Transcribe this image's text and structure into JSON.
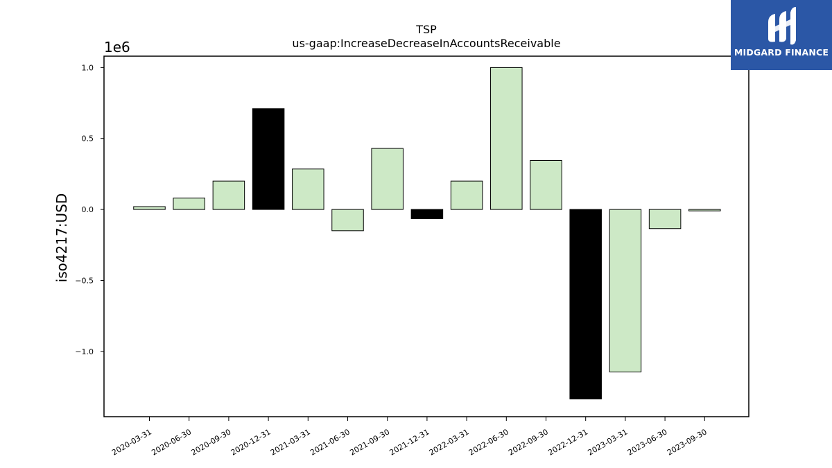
{
  "logo": {
    "text": "MIDGARD FINANCE"
  },
  "colors": {
    "positive": "#cde9c6",
    "highlight": "#000000",
    "edge": "#000000",
    "logo_bg": "#2b57a6"
  },
  "chart_data": {
    "type": "bar",
    "title": "TSP",
    "subtitle": "us-gaap:IncreaseDecreaseInAccountsReceivable",
    "ylabel": "iso4217:USD",
    "xlabel": "",
    "y_offset_label": "1e6",
    "categories": [
      "2020-03-31",
      "2020-06-30",
      "2020-09-30",
      "2020-12-31",
      "2021-03-31",
      "2021-06-30",
      "2021-09-30",
      "2021-12-31",
      "2022-03-31",
      "2022-06-30",
      "2022-09-30",
      "2022-12-31",
      "2023-03-31",
      "2023-06-30",
      "2023-09-30"
    ],
    "values": [
      20000,
      80000,
      200000,
      710000,
      285000,
      -150000,
      430000,
      -65000,
      200000,
      1000000,
      345000,
      -1335000,
      -1145000,
      -135000,
      -10000
    ],
    "highlighted": [
      false,
      false,
      false,
      true,
      false,
      false,
      false,
      true,
      false,
      false,
      false,
      true,
      false,
      false,
      false
    ],
    "yticks": [
      -1.0,
      -0.5,
      0.0,
      0.5,
      1.0
    ],
    "ytick_labels": [
      "−1.0",
      "−0.5",
      "0.0",
      "0.5",
      "1.0"
    ],
    "ylim": [
      -1460000,
      1080000
    ],
    "grid": false
  }
}
